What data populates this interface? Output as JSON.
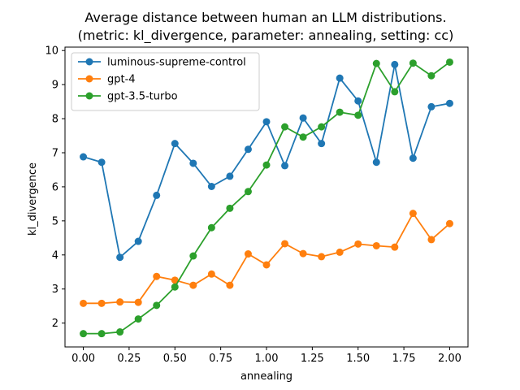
{
  "chart_data": {
    "type": "line",
    "title": "Average distance between human an LLM distributions.",
    "subtitle": "(metric: kl_divergence, parameter: annealing, setting: cc)",
    "xlabel": "annealing",
    "ylabel": "kl_divergence",
    "xlim": [
      -0.1,
      2.1
    ],
    "ylim": [
      1.3,
      10.1
    ],
    "xticks": [
      "0.00",
      "0.25",
      "0.50",
      "0.75",
      "1.00",
      "1.25",
      "1.50",
      "1.75",
      "2.00"
    ],
    "yticks": [
      "2",
      "3",
      "4",
      "5",
      "6",
      "7",
      "8",
      "9",
      "10"
    ],
    "grid": false,
    "legend_position": "top-left",
    "x": [
      0.0,
      0.1,
      0.2,
      0.3,
      0.4,
      0.5,
      0.6,
      0.7,
      0.8,
      0.9,
      1.0,
      1.1,
      1.2,
      1.3,
      1.4,
      1.5,
      1.6,
      1.7,
      1.8,
      1.9,
      2.0
    ],
    "series": [
      {
        "name": "luminous-supreme-control",
        "color": "#1f77b4",
        "values": [
          6.88,
          6.72,
          3.93,
          4.4,
          5.75,
          7.27,
          6.69,
          6.01,
          6.31,
          7.1,
          7.91,
          6.62,
          8.02,
          7.27,
          9.19,
          8.52,
          6.72,
          9.59,
          6.84,
          8.35,
          8.45
        ]
      },
      {
        "name": "gpt-4",
        "color": "#ff7f0e",
        "values": [
          2.58,
          2.58,
          2.62,
          2.61,
          3.37,
          3.26,
          3.11,
          3.44,
          3.11,
          4.03,
          3.71,
          4.33,
          4.04,
          3.95,
          4.08,
          4.32,
          4.27,
          4.23,
          5.22,
          4.45,
          4.92
        ]
      },
      {
        "name": "gpt-3.5-turbo",
        "color": "#2ca02c",
        "values": [
          1.69,
          1.69,
          1.74,
          2.12,
          2.52,
          3.06,
          3.97,
          4.8,
          5.37,
          5.86,
          6.64,
          7.76,
          7.46,
          7.76,
          8.19,
          8.1,
          9.62,
          8.79,
          9.63,
          9.26,
          9.66
        ]
      }
    ]
  }
}
